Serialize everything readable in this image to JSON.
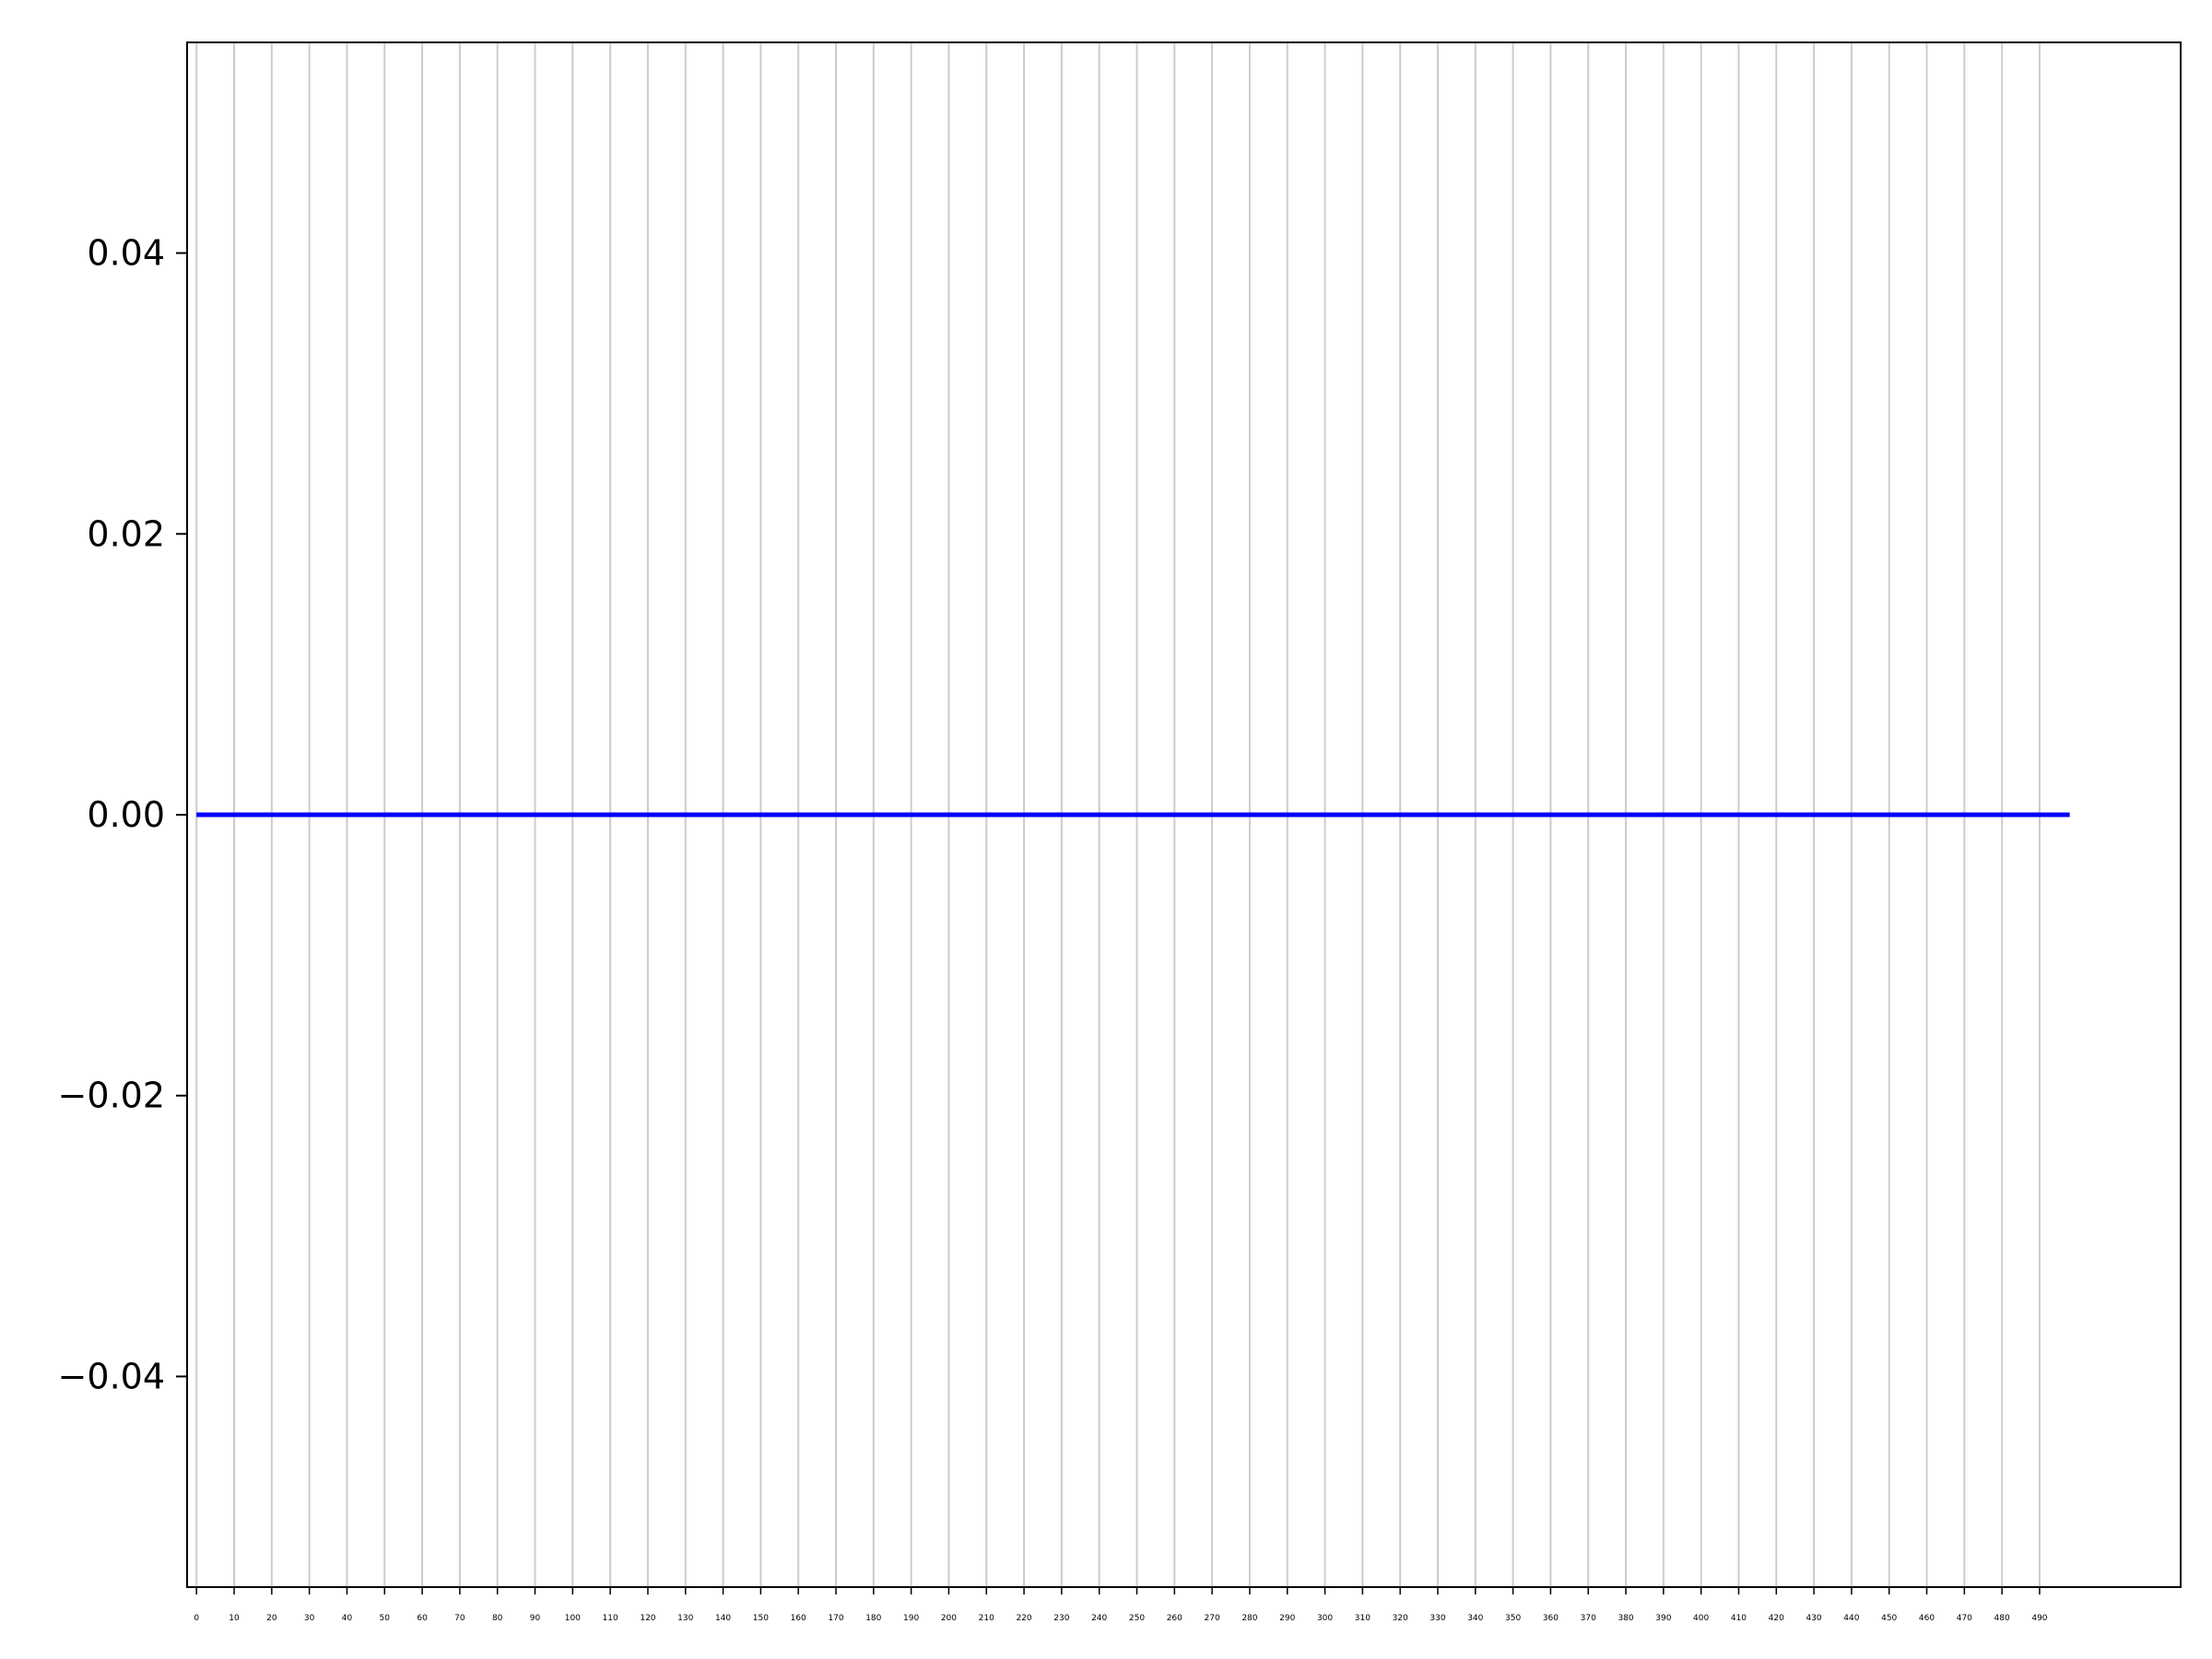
{
  "chart_data": {
    "type": "line",
    "title": "",
    "xlabel": "",
    "ylabel": "",
    "grid": "vertical",
    "xlim": [
      -2.5,
      527.5
    ],
    "ylim": [
      -0.055,
      0.055
    ],
    "xticks": [
      0,
      10,
      20,
      30,
      40,
      50,
      60,
      70,
      80,
      90,
      100,
      110,
      120,
      130,
      140,
      150,
      160,
      170,
      180,
      190,
      200,
      210,
      220,
      230,
      240,
      250,
      260,
      270,
      280,
      290,
      300,
      310,
      320,
      330,
      340,
      350,
      360,
      370,
      380,
      390,
      400,
      410,
      420,
      430,
      440,
      450,
      460,
      470,
      480,
      490
    ],
    "xtick_labels": [
      "0",
      "10",
      "20",
      "30",
      "40",
      "50",
      "60",
      "70",
      "80",
      "90",
      "100",
      "110",
      "120",
      "130",
      "140",
      "150",
      "160",
      "170",
      "180",
      "190",
      "200",
      "210",
      "220",
      "230",
      "240",
      "250",
      "260",
      "270",
      "280",
      "290",
      "300",
      "310",
      "320",
      "330",
      "340",
      "350",
      "360",
      "370",
      "380",
      "390",
      "400",
      "410",
      "420",
      "430",
      "440",
      "450",
      "460",
      "470",
      "480",
      "490"
    ],
    "yticks": [
      -0.04,
      -0.02,
      0.0,
      0.02,
      0.04
    ],
    "ytick_labels": [
      "−0.04",
      "−0.02",
      "0.00",
      "0.02",
      "0.04"
    ],
    "series": [
      {
        "color": "#0000ff",
        "x": [
          0,
          498
        ],
        "y": [
          0,
          0
        ]
      }
    ],
    "colors": {
      "line": "#0000ff",
      "grid": "#cccccc",
      "axes": "#000000"
    }
  }
}
